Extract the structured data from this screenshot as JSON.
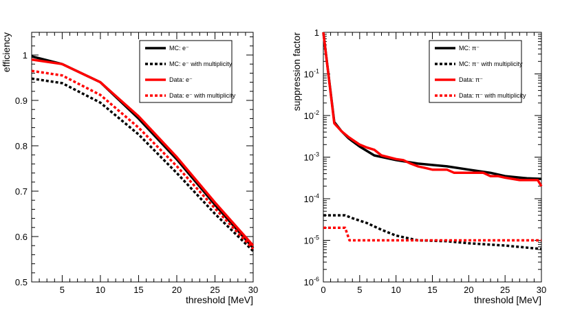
{
  "chart_data": [
    {
      "type": "line",
      "xlabel": "threshold [MeV]",
      "ylabel": "efficiency",
      "xlim": [
        1,
        30
      ],
      "ylim": [
        0.5,
        1.05
      ],
      "yscale": "linear",
      "xticks": [
        "5",
        "10",
        "15",
        "20",
        "25",
        "30"
      ],
      "yticks": [
        "0.5",
        "0.6",
        "0.7",
        "0.8",
        "0.9",
        "1"
      ],
      "legend_position": "top-right",
      "series": [
        {
          "name": "MC: e",
          "color": "#000000",
          "dashed": false,
          "x": [
            1,
            5,
            10,
            15,
            20,
            25,
            30
          ],
          "y": [
            0.997,
            0.98,
            0.94,
            0.86,
            0.77,
            0.67,
            0.575
          ]
        },
        {
          "name": "MC: e with multiplicity",
          "color": "#000000",
          "dashed": true,
          "x": [
            1,
            5,
            10,
            15,
            20,
            25,
            30
          ],
          "y": [
            0.948,
            0.938,
            0.895,
            0.825,
            0.74,
            0.65,
            0.568
          ]
        },
        {
          "name": "Data: e",
          "color": "#ff0000",
          "dashed": false,
          "x": [
            1,
            5,
            10,
            15,
            20,
            25,
            30
          ],
          "y": [
            0.99,
            0.98,
            0.94,
            0.865,
            0.775,
            0.675,
            0.58
          ]
        },
        {
          "name": "Data: e with multiplicity",
          "color": "#ff0000",
          "dashed": true,
          "x": [
            1,
            5,
            10,
            15,
            20,
            25,
            30
          ],
          "y": [
            0.965,
            0.955,
            0.912,
            0.84,
            0.755,
            0.662,
            0.573
          ]
        }
      ]
    },
    {
      "type": "line",
      "xlabel": "threshold [MeV]",
      "ylabel": "suppression factor",
      "xlim": [
        0,
        30
      ],
      "ylim": [
        1e-06,
        1
      ],
      "yscale": "log",
      "xticks": [
        "0",
        "5",
        "10",
        "15",
        "20",
        "25",
        "30"
      ],
      "yticks": [
        {
          "base": "10",
          "exp": "-6"
        },
        {
          "base": "10",
          "exp": "-5"
        },
        {
          "base": "10",
          "exp": "-4"
        },
        {
          "base": "10",
          "exp": "-3"
        },
        {
          "base": "10",
          "exp": "-2"
        },
        {
          "base": "10",
          "exp": "-1"
        },
        {
          "base": "1",
          "exp": ""
        }
      ],
      "legend_position": "top-right",
      "series": [
        {
          "name": "MC: π",
          "color": "#000000",
          "dashed": false,
          "x": [
            0,
            1.5,
            2.5,
            3.5,
            5,
            7,
            10,
            13,
            17,
            20,
            23,
            25,
            28,
            30
          ],
          "y": [
            1,
            0.007,
            0.0042,
            0.0028,
            0.0018,
            0.0011,
            0.00085,
            0.0007,
            0.0006,
            0.0005,
            0.00042,
            0.00035,
            0.00031,
            0.0003
          ]
        },
        {
          "name": "MC: π with multiplicity",
          "color": "#000000",
          "dashed": true,
          "x": [
            0,
            3,
            4,
            6,
            8,
            10,
            13,
            17,
            20,
            25,
            30
          ],
          "y": [
            4e-05,
            4e-05,
            3.4e-05,
            2.6e-05,
            1.8e-05,
            1.3e-05,
            1e-05,
            9.5e-06,
            8.5e-06,
            7.5e-06,
            6.2e-06
          ]
        },
        {
          "name": "Data: π",
          "color": "#ff0000",
          "dashed": false,
          "x": [
            0,
            1.5,
            2.5,
            3.5,
            5,
            6,
            7,
            8,
            10,
            11,
            12,
            13,
            14,
            15,
            17,
            18,
            20,
            22,
            23,
            24,
            25,
            27,
            29,
            29.5,
            30
          ],
          "y": [
            1,
            0.0065,
            0.0042,
            0.003,
            0.002,
            0.0017,
            0.0015,
            0.0011,
            0.0009,
            0.00085,
            0.0007,
            0.0006,
            0.00055,
            0.0005,
            0.0005,
            0.00042,
            0.00042,
            0.00042,
            0.00035,
            0.00035,
            0.00032,
            0.00028,
            0.00028,
            0.00028,
            0.0002
          ]
        },
        {
          "name": "Data: π with multiplicity",
          "color": "#ff0000",
          "dashed": true,
          "x": [
            0,
            3,
            3.6,
            30
          ],
          "y": [
            2e-05,
            2e-05,
            1e-05,
            1e-05
          ]
        }
      ]
    }
  ],
  "legend_labels": {
    "left": [
      "MC: e⁻",
      "MC: e⁻ with multiplicity",
      "Data: e⁻",
      "Data: e⁻ with multiplicity"
    ],
    "right": [
      "MC: π⁻",
      "MC: π⁻ with multiplicity",
      "Data: π⁻",
      "Data: π⁻ with multiplicity"
    ]
  }
}
